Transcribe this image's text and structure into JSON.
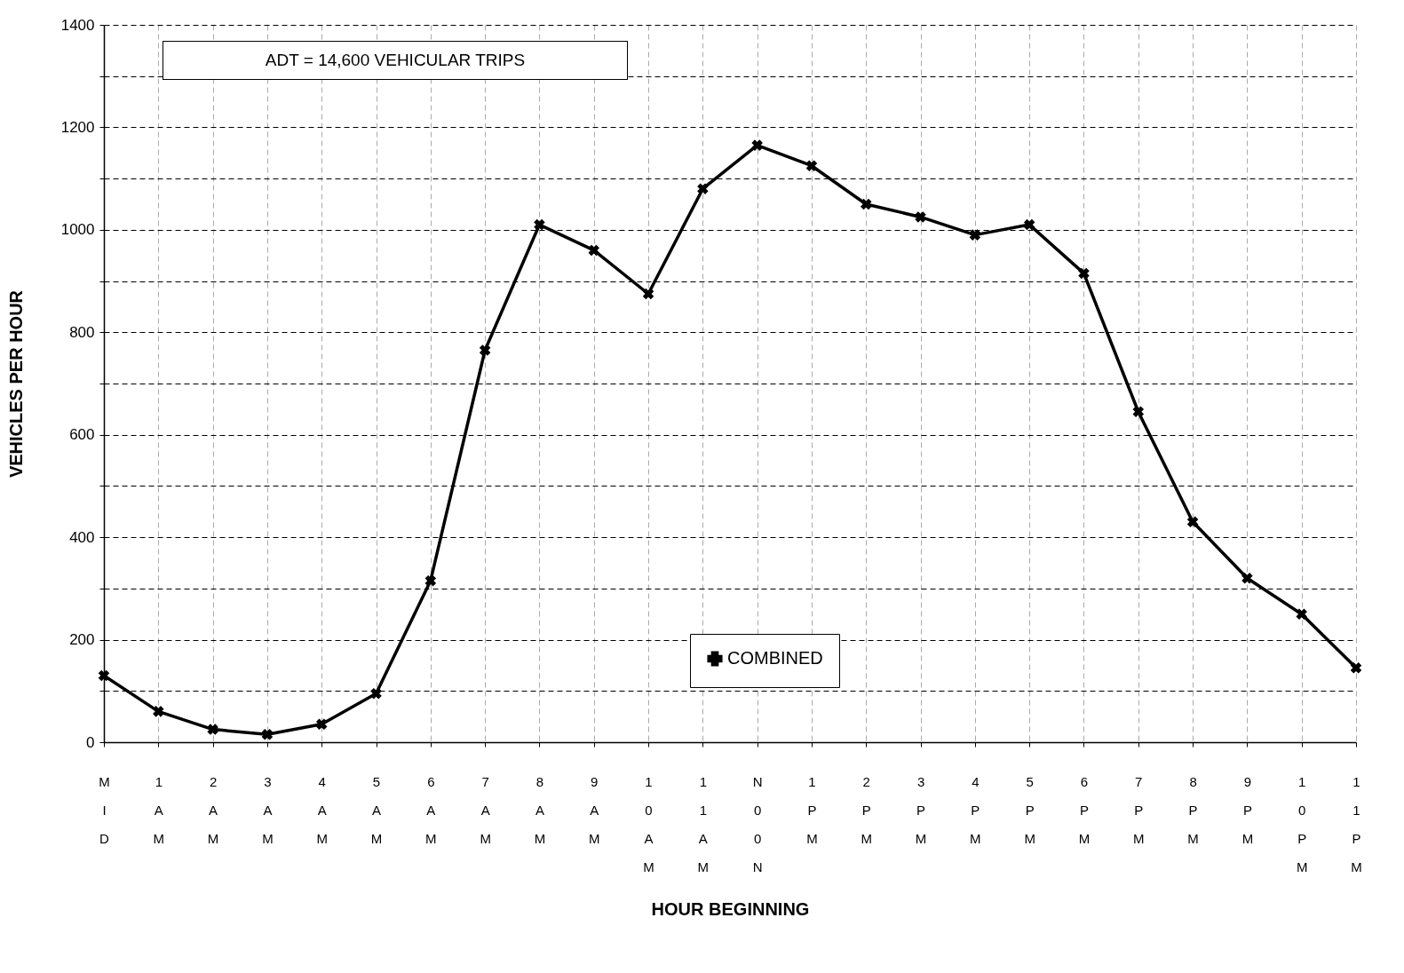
{
  "chart_data": {
    "type": "line",
    "xlabel": "HOUR BEGINNING",
    "ylabel": "VEHICLES PER HOUR",
    "categories": [
      "MID",
      "1AM",
      "2AM",
      "3AM",
      "4AM",
      "5AM",
      "6AM",
      "7AM",
      "8AM",
      "9AM",
      "10AM",
      "11AM",
      "N00N",
      "1PM",
      "2PM",
      "3PM",
      "4PM",
      "5PM",
      "6PM",
      "7PM",
      "8PM",
      "9PM",
      "10PM",
      "11PM"
    ],
    "series": [
      {
        "name": "COMBINED",
        "color": "#000000",
        "values": [
          130,
          60,
          25,
          15,
          35,
          95,
          315,
          765,
          1010,
          960,
          875,
          1080,
          1165,
          1125,
          1050,
          1025,
          990,
          1010,
          915,
          645,
          430,
          320,
          250,
          145
        ]
      }
    ],
    "ylim": [
      0,
      1400
    ],
    "yticks": [
      0,
      {
        "value": 100,
        "label": null
      },
      200,
      {
        "value": 300,
        "label": null
      },
      400,
      {
        "value": 500,
        "label": null
      },
      600,
      {
        "value": 700,
        "label": null
      },
      800,
      {
        "value": 900,
        "label": null
      },
      1000,
      {
        "value": 1100,
        "label": null
      },
      1200,
      {
        "value": 1300,
        "label": null
      },
      1400
    ],
    "grid": true,
    "legend": "bottom right",
    "marker": "cross",
    "line_style": "solid",
    "annotations": [
      "ADT = 14,600 VEHICULAR TRIPS"
    ]
  }
}
